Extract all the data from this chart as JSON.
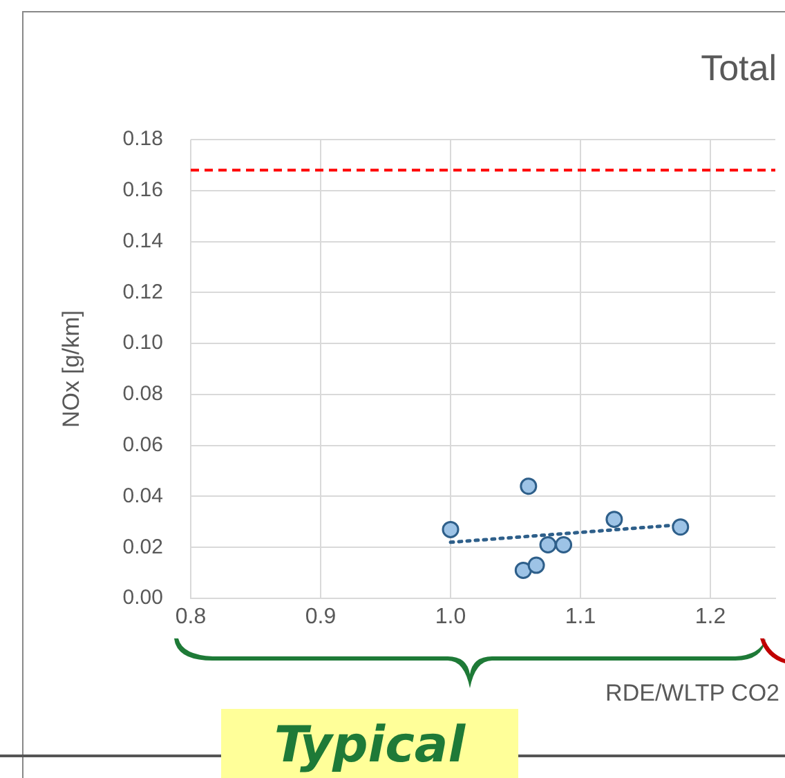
{
  "chart_data": {
    "type": "scatter",
    "title": "Total",
    "xlabel": "RDE/WLTP CO2",
    "ylabel": "NOx [g/km]",
    "annotations": [
      "Typical"
    ],
    "xlim": [
      0.8,
      1.25
    ],
    "xticks": [
      0.8,
      0.9,
      {
        "value": 1.0,
        "label": "1.0"
      },
      1.1,
      1.2
    ],
    "ylim": [
      0,
      0.18
    ],
    "yticks": [
      {
        "value": 0,
        "label": "0.00"
      },
      {
        "value": 0.02,
        "label": "0.02"
      },
      {
        "value": 0.04,
        "label": "0.04"
      },
      {
        "value": 0.06,
        "label": "0.06"
      },
      {
        "value": 0.08,
        "label": "0.08"
      },
      {
        "value": 0.1,
        "label": "0.10"
      },
      {
        "value": 0.12,
        "label": "0.12"
      },
      {
        "value": 0.14,
        "label": "0.14"
      },
      {
        "value": 0.16,
        "label": "0.16"
      },
      {
        "value": 0.18,
        "label": "0.18"
      }
    ],
    "grid": true,
    "marker": "circle",
    "series": [
      {
        "color": "#9dc3e6",
        "x": [
          1.0,
          1.06,
          1.126,
          1.177,
          1.075,
          1.087,
          1.056,
          1.066
        ],
        "values": [
          0.027,
          0.044,
          0.031,
          0.028,
          0.021,
          0.021,
          0.011,
          0.013
        ]
      },
      {
        "type": "line",
        "color": "#2e5f8a",
        "line_style": "dotted",
        "marker": "none",
        "x": [
          1.0,
          1.18
        ],
        "values": [
          0.022,
          0.029
        ]
      }
    ],
    "ref_lines": [
      {
        "axis": "y",
        "value": 0.168,
        "color": "#ff0000",
        "line_style": "dashed"
      }
    ]
  }
}
